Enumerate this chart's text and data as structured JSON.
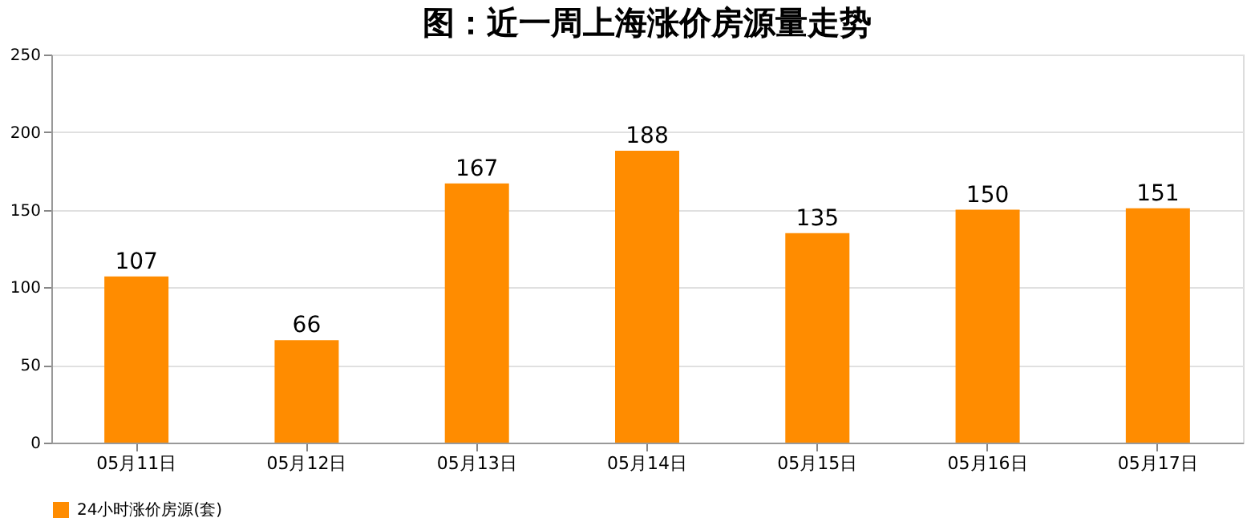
{
  "chart_data": {
    "type": "bar",
    "title": "图：近一周上海涨价房源量走势",
    "categories": [
      "05月11日",
      "05月12日",
      "05月13日",
      "05月14日",
      "05月15日",
      "05月16日",
      "05月17日"
    ],
    "series": [
      {
        "name": "24小时涨价房源(套)",
        "color": "#ff8c00",
        "values": [
          107,
          66,
          167,
          188,
          135,
          150,
          151
        ]
      }
    ],
    "ylim": [
      0,
      250
    ],
    "yticks": [
      0,
      50,
      100,
      150,
      200,
      250
    ],
    "grid": "y",
    "legend": "bottom",
    "data_labels": true
  }
}
